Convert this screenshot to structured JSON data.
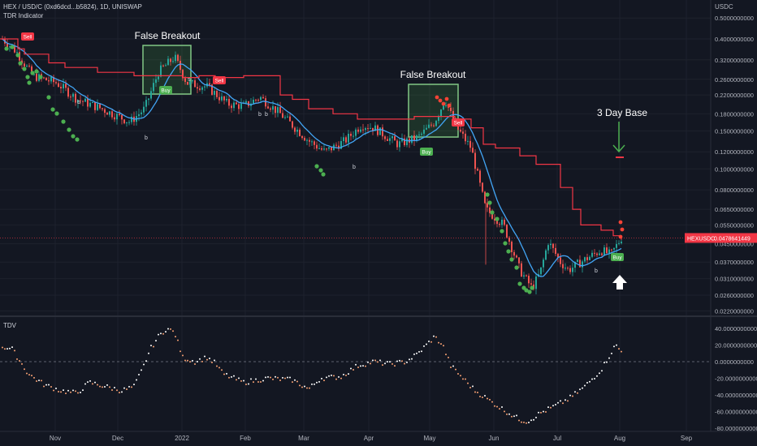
{
  "header": {
    "symbol_line": "HEX / USD/C (0xd6dcd...b5824), 1D, UNISWAP",
    "indicator_name": "TDR Indicator",
    "sub_indicator_name": "TDV"
  },
  "axis": {
    "currency": "USDC",
    "price_ticks": [
      "0.5000000000",
      "0.4000000000",
      "0.3200000000",
      "0.2600000000",
      "0.2200000000",
      "0.1800000000",
      "0.1500000000",
      "0.1200000000",
      "0.1000000000",
      "0.0800000000",
      "0.0650000000",
      "0.0550000000",
      "0.0450000000",
      "0.0370000000",
      "0.0310000000",
      "0.0260000000",
      "0.0220000000"
    ],
    "price_tick_values": [
      0.5,
      0.4,
      0.32,
      0.26,
      0.22,
      0.18,
      0.15,
      0.12,
      0.1,
      0.08,
      0.065,
      0.055,
      0.045,
      0.037,
      0.031,
      0.026,
      0.022
    ],
    "tdv_ticks": [
      "40.0000000000",
      "20.0000000000",
      "0.0000000000",
      "-20.0000000000",
      "-40.0000000000",
      "-60.0000000000",
      "-80.0000000000"
    ],
    "tdv_tick_values": [
      40,
      20,
      0,
      -20,
      -40,
      -60,
      -80
    ],
    "months": [
      "Nov",
      "Dec",
      "2022",
      "Feb",
      "Mar",
      "Apr",
      "May",
      "Jun",
      "Jul",
      "Aug",
      "Sep"
    ],
    "last_price_label": "HEXUSDC",
    "last_price_value": "0.0478641449",
    "last_price": 0.0478641449
  },
  "annotations": {
    "false_breakout_1": "False Breakout",
    "false_breakout_2": "False Breakout",
    "three_day_base": "3 Day Base",
    "sell": "Sell",
    "buy": "Buy",
    "b": "b",
    "s": "s"
  },
  "colors": {
    "background": "#131722",
    "up": "#26a69a",
    "down": "#ef5350",
    "resistance_line": "#f23645",
    "ma_line": "#42a5f5",
    "dot_green": "#4caf50",
    "dot_red": "#f44336",
    "buy_label": "#4caf50",
    "sell_label": "#f23645",
    "tdv_up": "#ffffff",
    "tdv_down": "#f7a072"
  },
  "chart_data": {
    "type": "candlestick",
    "scale": "log",
    "x_labels": [
      "Nov",
      "Dec",
      "2022",
      "Feb",
      "Mar",
      "Apr",
      "May",
      "Jun",
      "Jul",
      "Aug",
      "Sep"
    ],
    "key_points_approx": [
      {
        "t": "Oct start",
        "close": 0.4
      },
      {
        "t": "early Nov",
        "close": 0.26
      },
      {
        "t": "mid Dec",
        "close": 0.17
      },
      {
        "t": "late Dec peak",
        "close": 0.33
      },
      {
        "t": "Jan",
        "close": 0.24
      },
      {
        "t": "late Feb",
        "close": 0.125
      },
      {
        "t": "mid Apr",
        "close": 0.155
      },
      {
        "t": "early May peak",
        "close": 0.21
      },
      {
        "t": "mid Jun low",
        "close": 0.027
      },
      {
        "t": "early Jul",
        "close": 0.045
      },
      {
        "t": "late Jul",
        "close": 0.037
      },
      {
        "t": "end",
        "close": 0.0478641449
      }
    ],
    "resistance_level_steps": [
      0.4,
      0.34,
      0.29,
      0.27,
      0.22,
      0.18,
      0.17,
      0.15,
      0.13,
      0.1,
      0.065,
      0.052,
      0.047
    ],
    "tdv_range": [
      -80,
      40
    ]
  }
}
